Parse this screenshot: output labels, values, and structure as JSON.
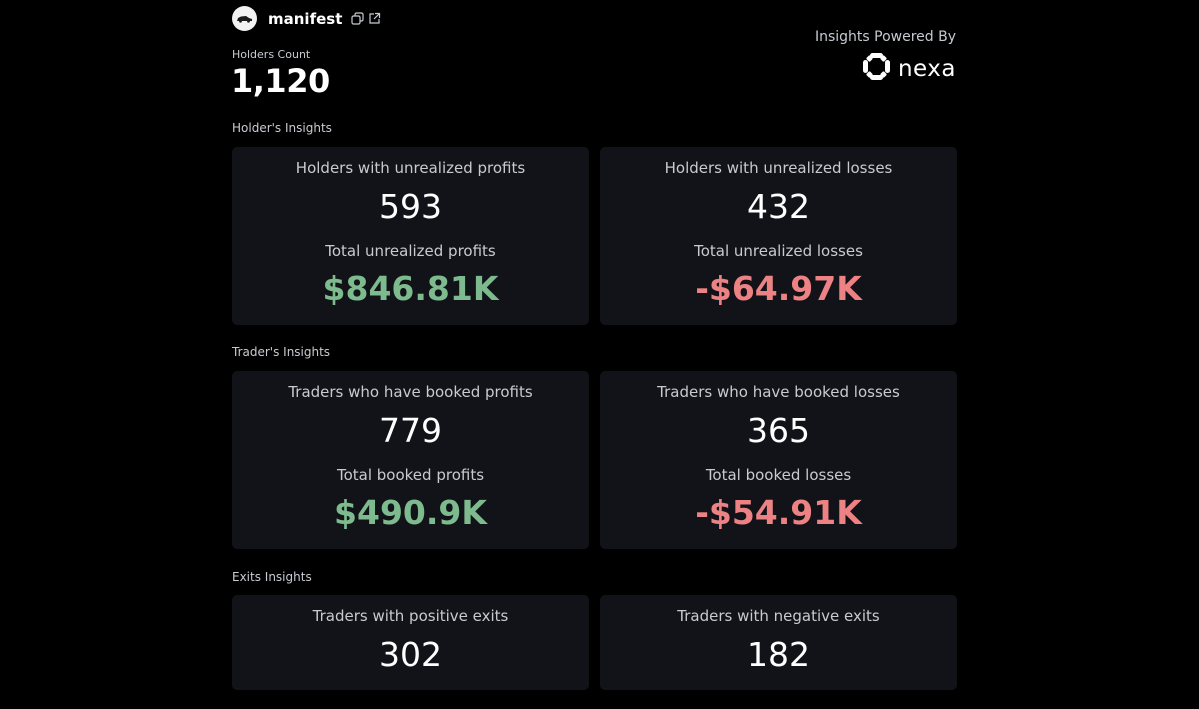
{
  "token": {
    "name": "manifest",
    "icons": [
      "car-logo-icon",
      "copy-icon",
      "external-link-icon"
    ]
  },
  "holders": {
    "label": "Holders Count",
    "value": "1,120"
  },
  "powered_by": {
    "label": "Insights Powered By",
    "brand": "nexa",
    "brand_icon": "nexa-logo-icon"
  },
  "sections": {
    "holders": {
      "label": "Holder's Insights",
      "profit_card": {
        "title": "Holders with unrealized profits",
        "count": "593",
        "subtitle": "Total unrealized profits",
        "amount": "$846.81K"
      },
      "loss_card": {
        "title": "Holders with unrealized losses",
        "count": "432",
        "subtitle": "Total unrealized losses",
        "amount": "-$64.97K"
      }
    },
    "traders": {
      "label": "Trader's Insights",
      "profit_card": {
        "title": "Traders who have booked profits",
        "count": "779",
        "subtitle": "Total booked profits",
        "amount": "$490.9K"
      },
      "loss_card": {
        "title": "Traders who have booked losses",
        "count": "365",
        "subtitle": "Total booked losses",
        "amount": "-$54.91K"
      }
    },
    "exits": {
      "label": "Exits Insights",
      "positive_card": {
        "title": "Traders with positive exits",
        "count": "302"
      },
      "negative_card": {
        "title": "Traders with negative exits",
        "count": "182"
      }
    }
  },
  "colors": {
    "background": "#000000",
    "card": "#121318",
    "profit": "#7dbb8e",
    "loss": "#ec8284"
  }
}
